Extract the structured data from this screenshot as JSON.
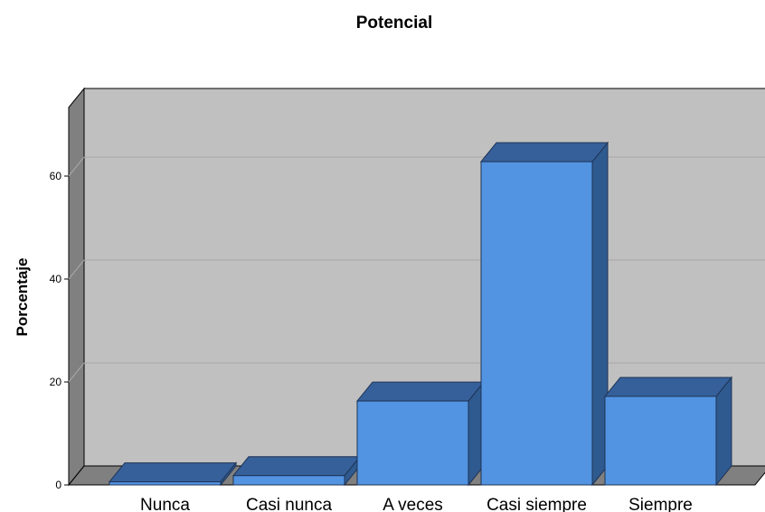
{
  "chart_data": {
    "type": "bar",
    "title": "Potencial",
    "xlabel": "",
    "ylabel": "Porcentaje",
    "categories": [
      "Nunca",
      "Casi nunca",
      "A veces",
      "Casi siempre",
      "Siempre"
    ],
    "values": [
      0.6,
      1.8,
      16.3,
      62.8,
      17.2
    ],
    "ylim": [
      0,
      70
    ],
    "yticks": [
      "0",
      "20",
      "40",
      "60"
    ],
    "grid": true,
    "style": "3d",
    "colors": {
      "bar_front": "#5294e2",
      "bar_top": "#36609a",
      "bar_side": "#2f5a8f",
      "wall_back": "#c0c0c0",
      "wall_side": "#808080",
      "floor": "#808080",
      "gridline": "#a9a9a9"
    }
  }
}
